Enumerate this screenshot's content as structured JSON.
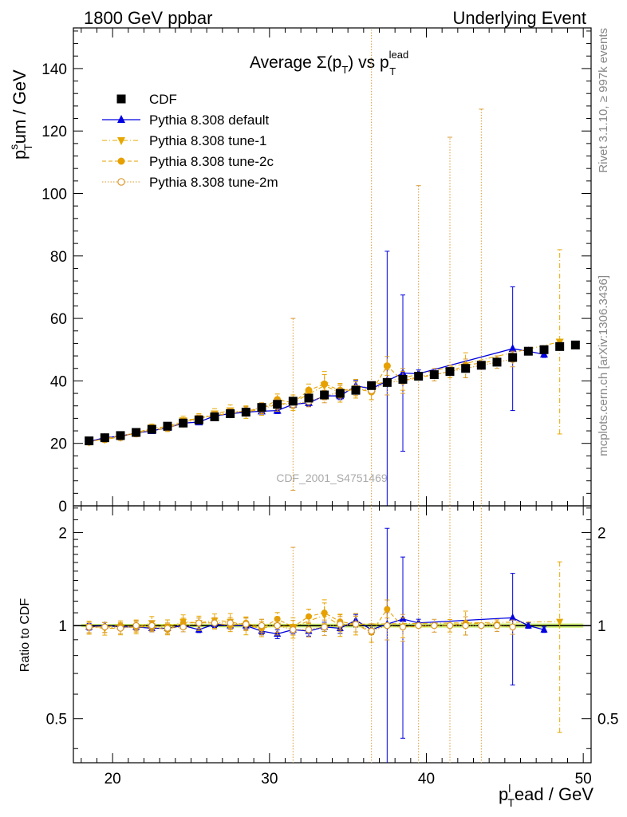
{
  "header": {
    "left": "1800 GeV ppbar",
    "right": "Underlying Event"
  },
  "side_labels": {
    "rivet": "Rivet 3.1.10, ≥ 997k events",
    "mcplots": "mcplots.cern.ch [arXiv:1306.3436]"
  },
  "watermark": "CDF_2001_S4751469",
  "chart_data": [
    {
      "type": "scatter",
      "title": "Average Σ(p_T) vs p_T^lead",
      "ylabel": "p_T^sum / GeV",
      "xlabel": "p_T^lead / GeV",
      "xlim": [
        17.5,
        50.5
      ],
      "ylim": [
        0,
        153
      ],
      "xticks": [
        20,
        30,
        40,
        50
      ],
      "yticks": [
        0,
        20,
        40,
        60,
        80,
        100,
        120,
        140
      ],
      "legend_position": "top-left",
      "grid": false,
      "x": [
        18.5,
        19.5,
        20.5,
        21.5,
        22.5,
        23.5,
        24.5,
        25.5,
        26.5,
        27.5,
        28.5,
        29.5,
        30.5,
        31.5,
        32.5,
        33.5,
        34.5,
        35.5,
        36.5,
        37.5,
        38.5,
        39.5,
        40.5,
        41.5,
        42.5,
        43.5,
        44.5,
        45.5,
        46.5,
        47.5,
        48.5,
        49.5
      ],
      "series": [
        {
          "name": "CDF",
          "color": "#000000",
          "marker": "filled-square",
          "values": [
            20.8,
            21.8,
            22.5,
            23.5,
            24.5,
            25.5,
            26.5,
            27.5,
            28.5,
            29.5,
            30.0,
            31.5,
            32.5,
            33.5,
            34.5,
            35.5,
            36.0,
            37.0,
            38.5,
            39.5,
            40.5,
            41.5,
            42.0,
            43.0,
            44.0,
            45.0,
            46.0,
            47.5,
            49.5,
            50.0,
            51.0,
            51.5
          ]
        },
        {
          "name": "Pythia 8.308 default",
          "color": "#0000e0",
          "marker": "filled-triangle-up",
          "line": "solid",
          "values": [
            20.6,
            21.8,
            22.3,
            23.3,
            24.0,
            25.0,
            26.5,
            26.8,
            28.8,
            29.5,
            30.0,
            30.3,
            30.5,
            32.5,
            33.0,
            35.2,
            35.2,
            38.4,
            37.5,
            40.0,
            42.5,
            42.3,
            null,
            null,
            null,
            null,
            null,
            50.3,
            49.5,
            48.5,
            null,
            null
          ],
          "errors": [
            0.5,
            0.5,
            0.5,
            0.5,
            0.6,
            0.6,
            0.6,
            0.7,
            0.7,
            0.8,
            0.8,
            0.9,
            1.0,
            1.0,
            1.1,
            1.2,
            1.2,
            1.8,
            1.5,
            41.5,
            25.0,
            1.2,
            null,
            null,
            null,
            null,
            null,
            19.8,
            1.0,
            1.0,
            null,
            null
          ]
        },
        {
          "name": "Pythia 8.308 tune-1",
          "color": "#e6a800",
          "marker": "filled-triangle-down",
          "line": "dash-dot",
          "values": [
            20.5,
            21.3,
            22.0,
            23.3,
            25.0,
            25.3,
            27.3,
            28.0,
            29.5,
            30.5,
            30.0,
            31.0,
            32.5,
            33.0,
            null,
            38.5,
            36.2,
            37.5,
            null,
            null,
            null,
            null,
            null,
            null,
            null,
            null,
            null,
            null,
            null,
            null,
            52.5,
            null
          ],
          "errors": [
            1.0,
            1.0,
            1.0,
            1.2,
            1.2,
            1.3,
            1.4,
            1.5,
            1.6,
            1.8,
            2.0,
            2.0,
            2.2,
            2.5,
            null,
            4.5,
            3.0,
            3.0,
            null,
            null,
            null,
            null,
            null,
            null,
            null,
            null,
            null,
            null,
            null,
            null,
            29.5,
            null
          ]
        },
        {
          "name": "Pythia 8.308 tune-2c",
          "color": "#e6a000",
          "marker": "filled-circle",
          "line": "dashed",
          "values": [
            20.5,
            21.5,
            22.5,
            23.3,
            24.3,
            24.8,
            27.0,
            28.0,
            29.0,
            29.5,
            30.5,
            31.0,
            34.0,
            33.0,
            37.0,
            39.0,
            37.0,
            37.5,
            36.5,
            44.8,
            40.0,
            null,
            null,
            43.0,
            45.0,
            null,
            46.5,
            null,
            null,
            null,
            null,
            null
          ],
          "errors": [
            0.8,
            0.8,
            0.8,
            0.9,
            0.9,
            1.0,
            1.0,
            1.1,
            1.2,
            1.3,
            1.4,
            1.5,
            1.8,
            1.8,
            2.0,
            3.0,
            2.0,
            2.2,
            2.5,
            3.0,
            3.0,
            null,
            null,
            2.0,
            4.0,
            null,
            1.5,
            null,
            null,
            null,
            null,
            null
          ]
        },
        {
          "name": "Pythia 8.308 tune-2m",
          "color": "#d99a30",
          "marker": "open-circle",
          "line": "dotted",
          "values": [
            20.5,
            21.5,
            22.0,
            23.5,
            24.5,
            25.0,
            26.3,
            28.0,
            29.0,
            30.0,
            30.3,
            31.5,
            32.5,
            32.5,
            33.5,
            35.0,
            36.5,
            37.5,
            37.0,
            39.5,
            40.0,
            41.5,
            42.0,
            43.0,
            44.0,
            45.0,
            46.0,
            47.0,
            null,
            null,
            null,
            null
          ],
          "errors": [
            0.8,
            0.8,
            0.8,
            0.9,
            0.9,
            1.0,
            1.0,
            1.1,
            1.2,
            1.3,
            1.4,
            1.5,
            1.6,
            27.5,
            1.8,
            2.0,
            2.0,
            2.2,
            120.0,
            4.0,
            4.0,
            61.0,
            2.0,
            75.0,
            3.0,
            82.0,
            2.0,
            2.5,
            null,
            null,
            null,
            null
          ]
        }
      ]
    },
    {
      "type": "scatter",
      "ylabel": "Ratio to CDF",
      "xlabel": "p_T^lead / GeV",
      "xlim": [
        17.5,
        50.5
      ],
      "ylim": [
        0.36,
        2.44
      ],
      "yscale": "log",
      "xticks": [
        20,
        30,
        40,
        50
      ],
      "yticks": [
        0.5,
        1,
        2
      ],
      "band_color": "#c8f05a",
      "series": [
        {
          "name": "Pythia 8.308 default",
          "values": [
            0.99,
            1.0,
            0.99,
            0.99,
            0.98,
            0.98,
            1.0,
            0.97,
            1.01,
            1.0,
            1.0,
            0.96,
            0.94,
            0.97,
            0.96,
            0.99,
            0.98,
            1.04,
            0.97,
            1.01,
            1.05,
            1.02,
            null,
            null,
            null,
            null,
            null,
            1.06,
            1.0,
            0.97,
            null,
            null
          ]
        },
        {
          "name": "Pythia 8.308 tune-1",
          "values": [
            0.99,
            0.98,
            0.98,
            0.99,
            1.02,
            0.99,
            1.03,
            1.02,
            1.04,
            1.03,
            1.0,
            0.98,
            1.0,
            0.99,
            null,
            1.08,
            1.0,
            1.01,
            null,
            null,
            null,
            null,
            null,
            null,
            null,
            null,
            null,
            null,
            null,
            null,
            1.03,
            null
          ]
        },
        {
          "name": "Pythia 8.308 tune-2c",
          "values": [
            0.99,
            0.99,
            1.0,
            0.99,
            0.99,
            0.97,
            1.02,
            1.02,
            1.02,
            1.0,
            1.02,
            0.98,
            1.05,
            0.99,
            1.07,
            1.1,
            1.03,
            1.01,
            0.95,
            1.13,
            0.99,
            null,
            null,
            1.0,
            1.02,
            null,
            1.01,
            null,
            null,
            null,
            null,
            null
          ]
        },
        {
          "name": "Pythia 8.308 tune-2m",
          "values": [
            0.99,
            0.99,
            0.98,
            1.0,
            1.0,
            0.98,
            0.99,
            1.02,
            1.02,
            1.02,
            1.01,
            1.0,
            1.0,
            0.97,
            0.97,
            0.99,
            1.01,
            1.01,
            0.96,
            1.0,
            0.99,
            1.0,
            1.0,
            1.0,
            1.0,
            1.0,
            1.0,
            0.99,
            null,
            null,
            null,
            null
          ]
        }
      ]
    }
  ]
}
